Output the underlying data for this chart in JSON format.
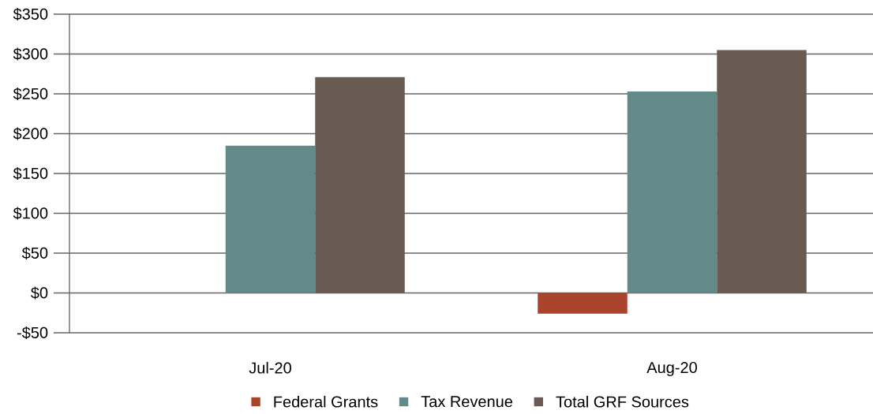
{
  "chart_data": {
    "type": "bar",
    "categories": [
      "Jul-20",
      "Aug-20"
    ],
    "series": [
      {
        "name": "Federal Grants",
        "color": "#a9432b",
        "values": [
          0,
          -26
        ]
      },
      {
        "name": "Tax Revenue",
        "color": "#628a89",
        "values": [
          185,
          253
        ]
      },
      {
        "name": "Total GRF Sources",
        "color": "#695b52",
        "values": [
          271,
          305
        ]
      }
    ],
    "ylim": [
      -50,
      350
    ],
    "yticks": [
      {
        "value": -50,
        "label": "-$50"
      },
      {
        "value": 0,
        "label": "$0"
      },
      {
        "value": 50,
        "label": "$50"
      },
      {
        "value": 100,
        "label": "$100"
      },
      {
        "value": 150,
        "label": "$150"
      },
      {
        "value": 200,
        "label": "$200"
      },
      {
        "value": 250,
        "label": "$250"
      },
      {
        "value": 300,
        "label": "$300"
      },
      {
        "value": 350,
        "label": "$350"
      }
    ],
    "grid": "y",
    "legend": "bottom"
  }
}
